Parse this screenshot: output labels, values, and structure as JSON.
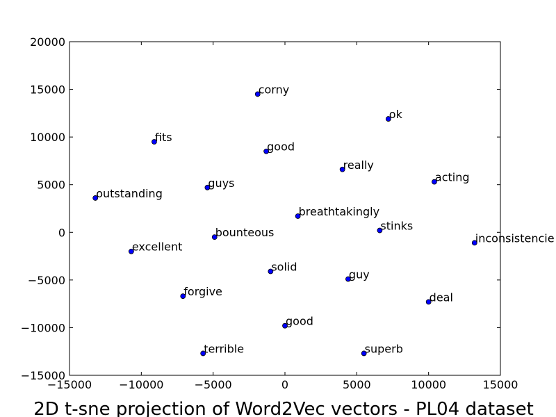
{
  "chart_data": {
    "type": "scatter",
    "title": "2D t-sne projection of Word2Vec vectors - PL04 dataset",
    "xlabel": "",
    "ylabel": "",
    "xlim": [
      -15000,
      15000
    ],
    "ylim": [
      -15000,
      20000
    ],
    "xticks": [
      -15000,
      -10000,
      -5000,
      0,
      5000,
      10000,
      15000
    ],
    "yticks": [
      -15000,
      -10000,
      -5000,
      0,
      5000,
      10000,
      15000,
      20000
    ],
    "xtick_labels": [
      "−15000",
      "−10000",
      "−5000",
      "0",
      "5000",
      "10000",
      "15000"
    ],
    "ytick_labels": [
      "−15000",
      "−10000",
      "−5000",
      "0",
      "5000",
      "10000",
      "15000",
      "20000"
    ],
    "grid": false,
    "marker_color": "#0000ff",
    "points": [
      {
        "label": "corny",
        "x": -1900,
        "y": 14500
      },
      {
        "label": "ok",
        "x": 7200,
        "y": 11900
      },
      {
        "label": "fits",
        "x": -9100,
        "y": 9500
      },
      {
        "label": "good",
        "x": -1300,
        "y": 8500
      },
      {
        "label": "really",
        "x": 4000,
        "y": 6600
      },
      {
        "label": "acting",
        "x": 10400,
        "y": 5300
      },
      {
        "label": "guys",
        "x": -5400,
        "y": 4700
      },
      {
        "label": "outstanding",
        "x": -13200,
        "y": 3600
      },
      {
        "label": "breathtakingly",
        "x": 900,
        "y": 1700
      },
      {
        "label": "stinks",
        "x": 6600,
        "y": 200
      },
      {
        "label": "bounteous",
        "x": -4900,
        "y": -500
      },
      {
        "label": "inconsistencie",
        "x": 13200,
        "y": -1100
      },
      {
        "label": "excellent",
        "x": -10700,
        "y": -2000
      },
      {
        "label": "solid",
        "x": -1000,
        "y": -4100
      },
      {
        "label": "guy",
        "x": 4400,
        "y": -4900
      },
      {
        "label": "forgive",
        "x": -7100,
        "y": -6700
      },
      {
        "label": "deal",
        "x": 10000,
        "y": -7300
      },
      {
        "label": "good",
        "x": 0,
        "y": -9800
      },
      {
        "label": "terrible",
        "x": -5700,
        "y": -12700
      },
      {
        "label": "superb",
        "x": 5500,
        "y": -12700
      }
    ]
  }
}
